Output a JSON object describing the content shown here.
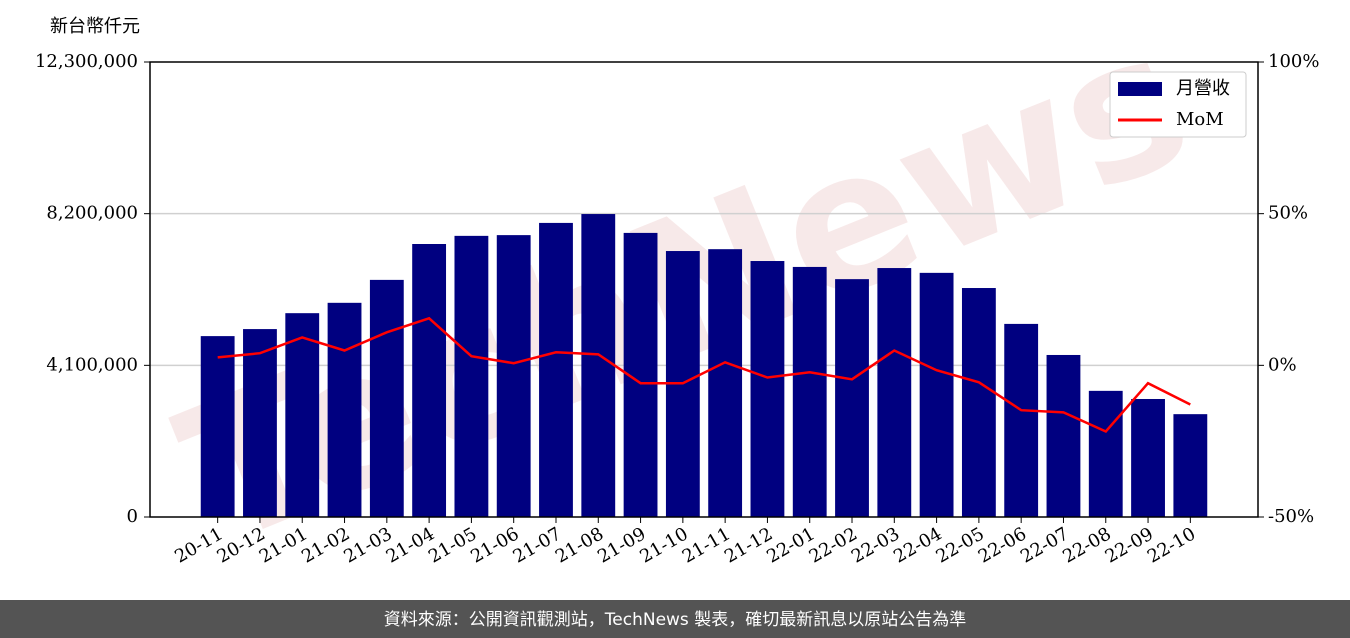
{
  "chart_data": {
    "type": "bar",
    "y_label": "新台幣仟元",
    "watermark": "TechNews",
    "categories": [
      "20-11",
      "20-12",
      "21-01",
      "21-02",
      "21-03",
      "21-04",
      "21-05",
      "21-06",
      "21-07",
      "21-08",
      "21-09",
      "21-10",
      "21-11",
      "21-12",
      "22-01",
      "22-02",
      "22-03",
      "22-04",
      "22-05",
      "22-06",
      "22-07",
      "22-08",
      "22-09",
      "22-10"
    ],
    "series": [
      {
        "name": "月營收",
        "type": "bar",
        "color": "#000080",
        "values": [
          4890000,
          5080000,
          5510000,
          5790000,
          6410000,
          7380000,
          7600000,
          7620000,
          7950000,
          8190000,
          7680000,
          7190000,
          7240000,
          6920000,
          6760000,
          6430000,
          6730000,
          6600000,
          6190000,
          5220000,
          4380000,
          3410000,
          3190000,
          2780000
        ]
      },
      {
        "name": "MoM",
        "type": "line",
        "color": "#ff0000",
        "axis": "y2",
        "values": [
          2.6,
          4.0,
          9.2,
          4.9,
          10.9,
          15.5,
          3.0,
          0.7,
          4.3,
          3.6,
          -5.9,
          -5.9,
          1.0,
          -4.0,
          -2.3,
          -4.6,
          4.9,
          -1.6,
          -5.6,
          -14.8,
          -15.5,
          -21.8,
          -5.9,
          -12.9
        ]
      }
    ],
    "ylim": [
      0,
      12300000
    ],
    "yticks": [
      0,
      {
        "value": 4100000,
        "label": "4,100,000"
      },
      {
        "value": 8200000,
        "label": "8,200,000"
      },
      {
        "value": 12300000,
        "label": "12,300,000"
      }
    ],
    "y2lim": [
      -50,
      100
    ],
    "y2ticks": [
      {
        "value": -50,
        "label": "-50%"
      },
      {
        "value": 0,
        "label": "0%"
      },
      {
        "value": 50,
        "label": "50%"
      },
      {
        "value": 100,
        "label": "100%"
      }
    ],
    "grid": true,
    "legend": "upper right"
  },
  "footer": "資料來源：公開資訊觀測站，TechNews 製表，確切最新訊息以原站公告為準"
}
